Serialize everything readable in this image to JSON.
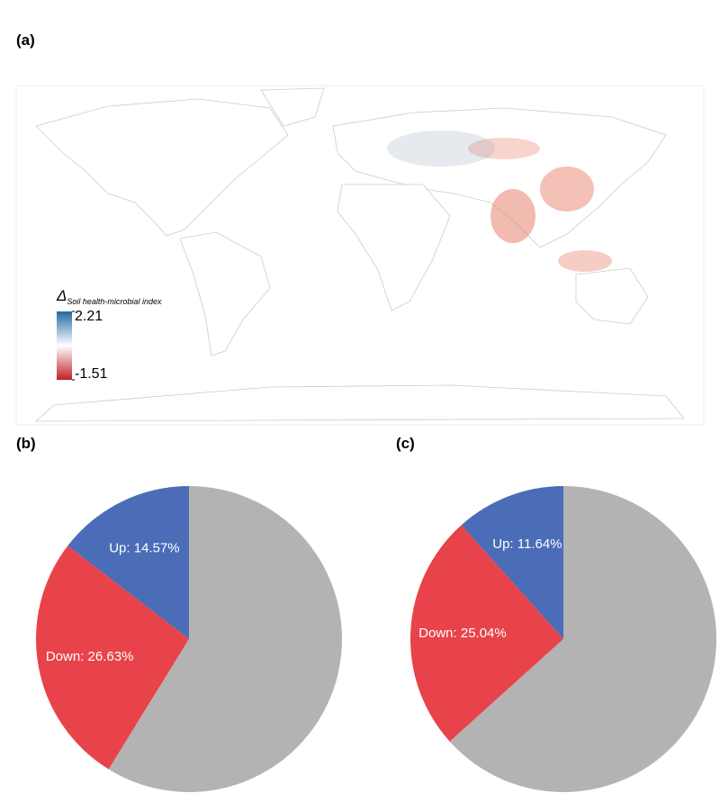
{
  "chart_data": [
    {
      "type": "map",
      "panel_label": "(a)",
      "colorbar": {
        "title": "Δ",
        "subtitle": "Soil health-microbial index",
        "lim": [
          -1.51,
          2.21
        ],
        "ticks": [
          2.21,
          -1.51
        ],
        "colors": [
          "#c0202a",
          "#ffffff",
          "#1f6aa5"
        ]
      }
    },
    {
      "type": "pie",
      "panel_label": "(b)",
      "values": [
        14.57,
        26.63,
        58.8
      ],
      "value_labels": [
        "Up: 14.57%",
        "Down: 26.63%",
        null
      ],
      "colors": [
        "#4b6cb7",
        "#e8434a",
        "#b3b3b3"
      ]
    },
    {
      "type": "pie",
      "panel_label": "(c)",
      "values": [
        11.64,
        25.04,
        63.32
      ],
      "value_labels": [
        "Up: 11.64%",
        "Down: 25.04%",
        null
      ],
      "colors": [
        "#4b6cb7",
        "#e8434a",
        "#b3b3b3"
      ]
    }
  ]
}
